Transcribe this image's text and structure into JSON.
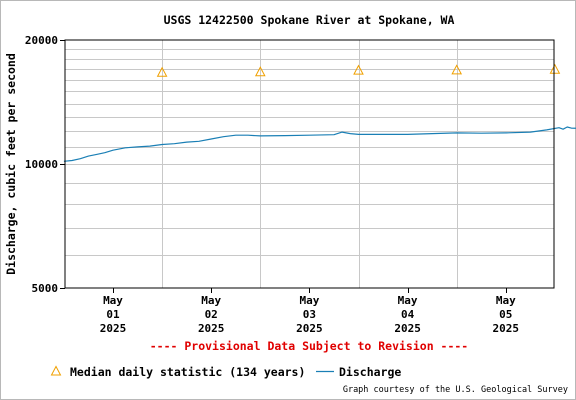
{
  "chart_data": {
    "type": "line",
    "title": "USGS 12422500 Spokane River at Spokane, WA",
    "ylabel": "Discharge, cubic feet per second",
    "xlabel": "",
    "y_scale": "log",
    "ylim": [
      5000,
      20000
    ],
    "y_ticks": [
      "20000",
      "10000",
      "5000"
    ],
    "x_ticks": [
      {
        "month": "May",
        "day": "01",
        "year": "2025",
        "date": "2025-05-01"
      },
      {
        "month": "May",
        "day": "02",
        "year": "2025",
        "date": "2025-05-02"
      },
      {
        "month": "May",
        "day": "03",
        "year": "2025",
        "date": "2025-05-03"
      },
      {
        "month": "May",
        "day": "04",
        "year": "2025",
        "date": "2025-05-04"
      },
      {
        "month": "May",
        "day": "05",
        "year": "2025",
        "date": "2025-05-05"
      }
    ],
    "grid": true,
    "legend_placement": "bottom",
    "series": [
      {
        "name": "Median daily statistic (134 years)",
        "kind": "marker",
        "marker": "triangle",
        "color": "#f0a000",
        "points": [
          {
            "x": "2025-05-01T12:00",
            "y": 16700
          },
          {
            "x": "2025-05-02T12:00",
            "y": 16750
          },
          {
            "x": "2025-05-03T12:00",
            "y": 16900
          },
          {
            "x": "2025-05-04T12:00",
            "y": 16920
          },
          {
            "x": "2025-05-05T12:00",
            "y": 16980
          }
        ]
      },
      {
        "name": "Discharge",
        "kind": "line",
        "color": "#1a7fb5",
        "points": [
          {
            "x": "2025-04-30T12:00",
            "y": 10150
          },
          {
            "x": "2025-04-30T14:00",
            "y": 10200
          },
          {
            "x": "2025-04-30T16:00",
            "y": 10300
          },
          {
            "x": "2025-04-30T18:00",
            "y": 10450
          },
          {
            "x": "2025-04-30T20:00",
            "y": 10550
          },
          {
            "x": "2025-04-30T22:00",
            "y": 10650
          },
          {
            "x": "2025-05-01T00:00",
            "y": 10800
          },
          {
            "x": "2025-05-01T03:00",
            "y": 10950
          },
          {
            "x": "2025-05-01T06:00",
            "y": 11000
          },
          {
            "x": "2025-05-01T09:00",
            "y": 11050
          },
          {
            "x": "2025-05-01T12:00",
            "y": 11150
          },
          {
            "x": "2025-05-01T15:00",
            "y": 11200
          },
          {
            "x": "2025-05-01T18:00",
            "y": 11300
          },
          {
            "x": "2025-05-01T21:00",
            "y": 11350
          },
          {
            "x": "2025-05-02T00:00",
            "y": 11500
          },
          {
            "x": "2025-05-02T03:00",
            "y": 11650
          },
          {
            "x": "2025-05-02T06:00",
            "y": 11750
          },
          {
            "x": "2025-05-02T09:00",
            "y": 11750
          },
          {
            "x": "2025-05-02T12:00",
            "y": 11700
          },
          {
            "x": "2025-05-02T18:00",
            "y": 11720
          },
          {
            "x": "2025-05-03T00:00",
            "y": 11750
          },
          {
            "x": "2025-05-03T06:00",
            "y": 11780
          },
          {
            "x": "2025-05-03T08:00",
            "y": 11950
          },
          {
            "x": "2025-05-03T10:00",
            "y": 11850
          },
          {
            "x": "2025-05-03T12:00",
            "y": 11800
          },
          {
            "x": "2025-05-03T18:00",
            "y": 11800
          },
          {
            "x": "2025-05-04T00:00",
            "y": 11800
          },
          {
            "x": "2025-05-04T06:00",
            "y": 11850
          },
          {
            "x": "2025-05-04T12:00",
            "y": 11900
          },
          {
            "x": "2025-05-04T18:00",
            "y": 11880
          },
          {
            "x": "2025-05-05T00:00",
            "y": 11900
          },
          {
            "x": "2025-05-05T06:00",
            "y": 11950
          },
          {
            "x": "2025-05-05T10:00",
            "y": 12100
          },
          {
            "x": "2025-05-05T13:00",
            "y": 12250
          },
          {
            "x": "2025-05-05T14:00",
            "y": 12150
          },
          {
            "x": "2025-05-05T15:00",
            "y": 12300
          },
          {
            "x": "2025-05-05T16:00",
            "y": 12220
          },
          {
            "x": "2025-05-05T18:00",
            "y": 12200
          }
        ]
      }
    ]
  },
  "provisional_note": "---- Provisional Data Subject to Revision ----",
  "credit": "Graph courtesy of the U.S. Geological Survey",
  "colors": {
    "grid": "#c8c8c8",
    "axis": "#000000",
    "provisional": "#e00000"
  }
}
